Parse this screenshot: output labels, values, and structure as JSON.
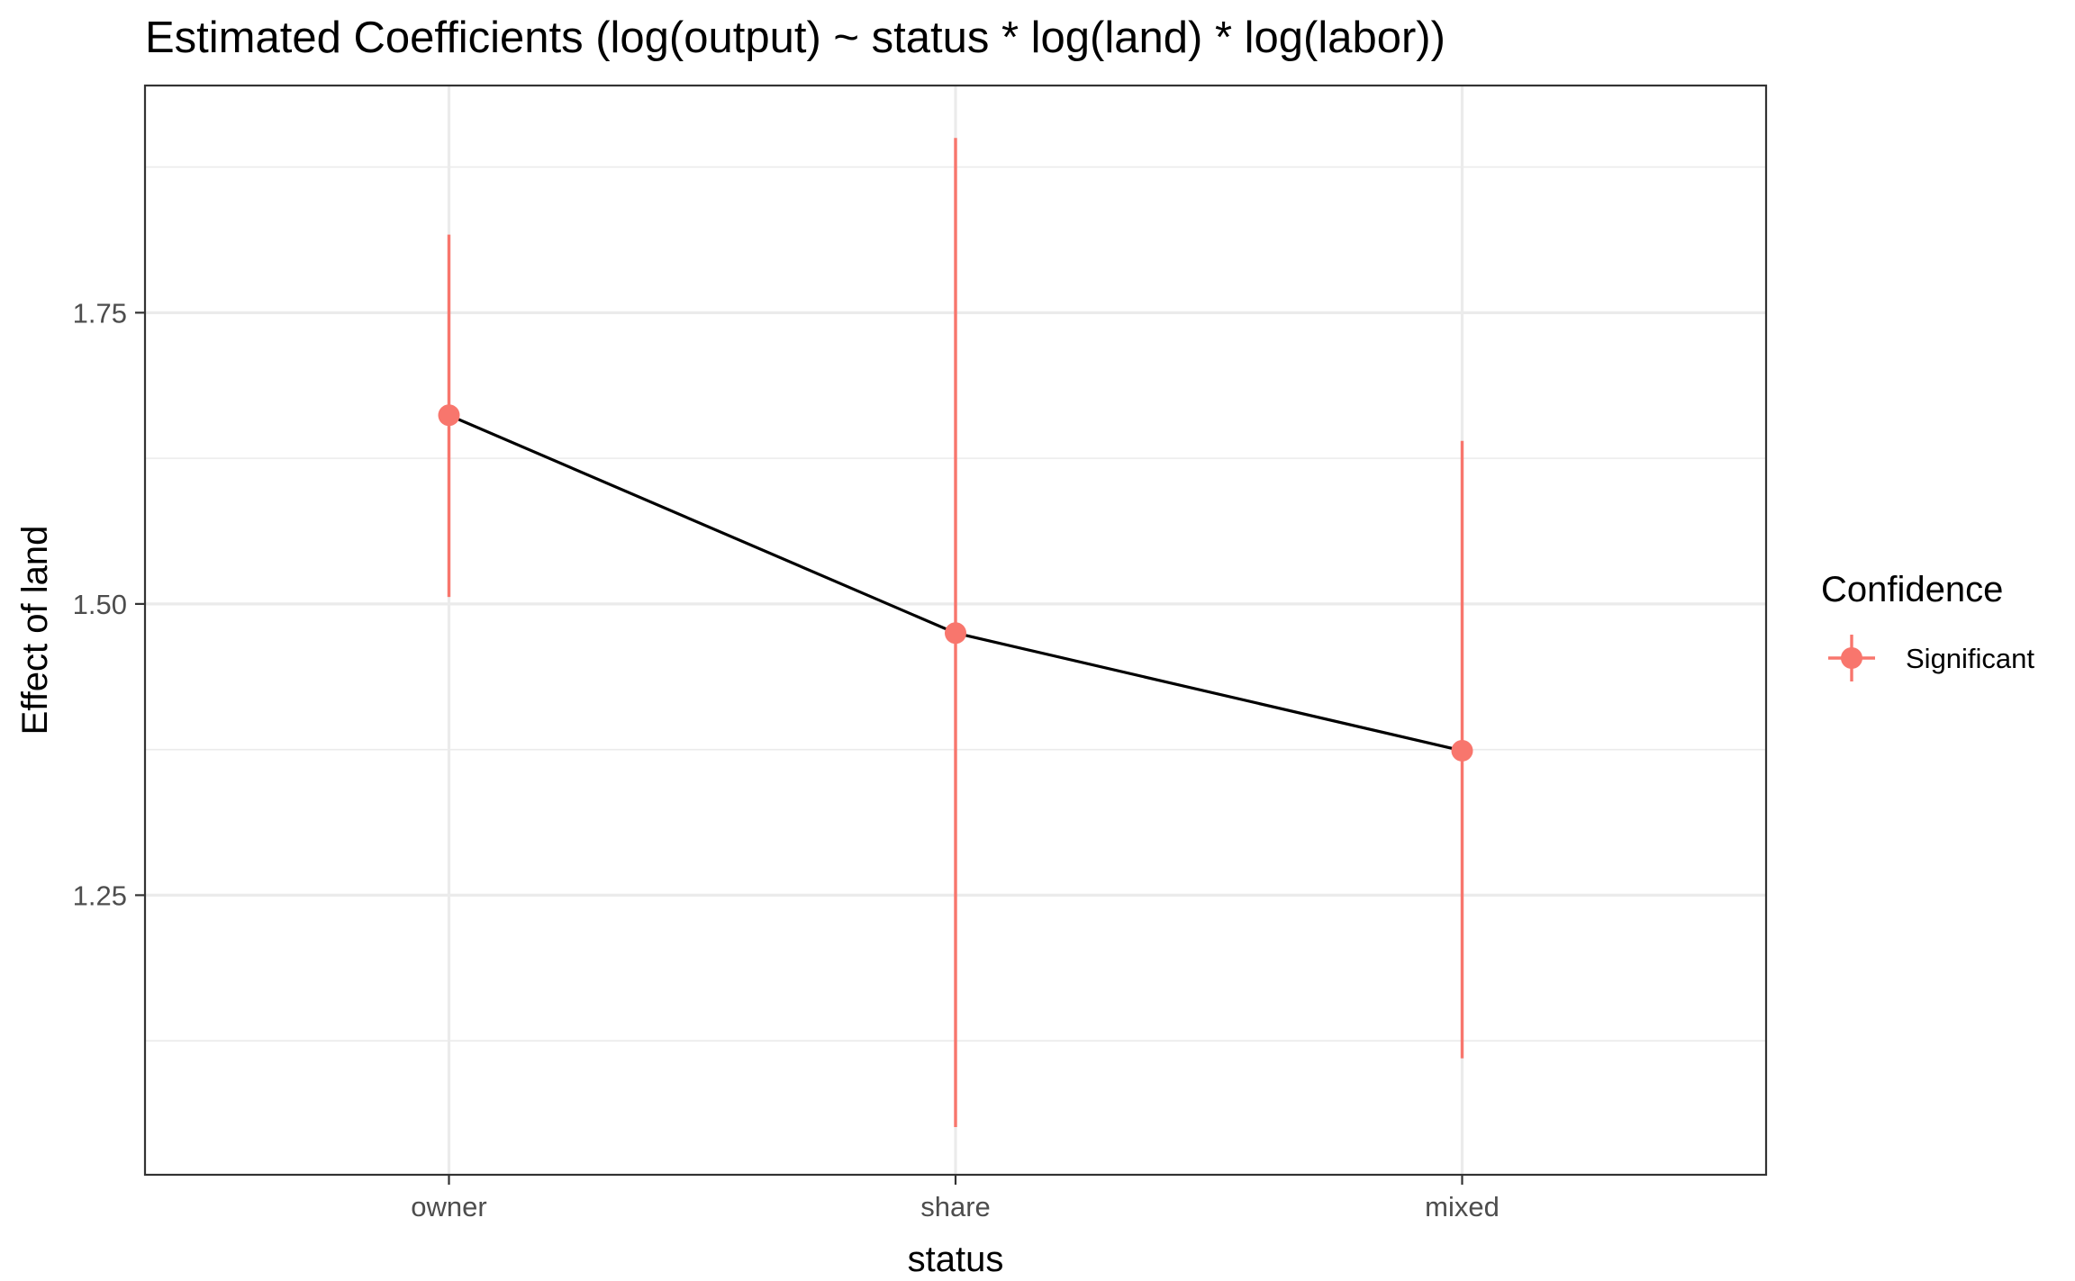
{
  "chart_data": {
    "type": "line",
    "title": "Estimated Coefficients (log(output) ~ status * log(land) * log(labor))",
    "xlabel": "status",
    "ylabel": "Effect of land",
    "categories": [
      "owner",
      "share",
      "mixed"
    ],
    "estimates": [
      1.662,
      1.475,
      1.374
    ],
    "ci_low": [
      1.506,
      1.051,
      1.11
    ],
    "ci_high": [
      1.817,
      1.9,
      1.64
    ],
    "ylim": [
      1.01,
      1.945
    ],
    "yticks": [
      1.25,
      1.5,
      1.75
    ],
    "ytick_labels": [
      "1.25",
      "1.50",
      "1.75"
    ],
    "minor_yticks": [
      1.125,
      1.375,
      1.625,
      1.875
    ],
    "grid": true,
    "line_color": "#000000",
    "point_color": "#F8766D",
    "legend": {
      "title": "Confidence",
      "entries": [
        {
          "label": "Significant",
          "color": "#F8766D"
        }
      ],
      "placement": "right"
    }
  }
}
